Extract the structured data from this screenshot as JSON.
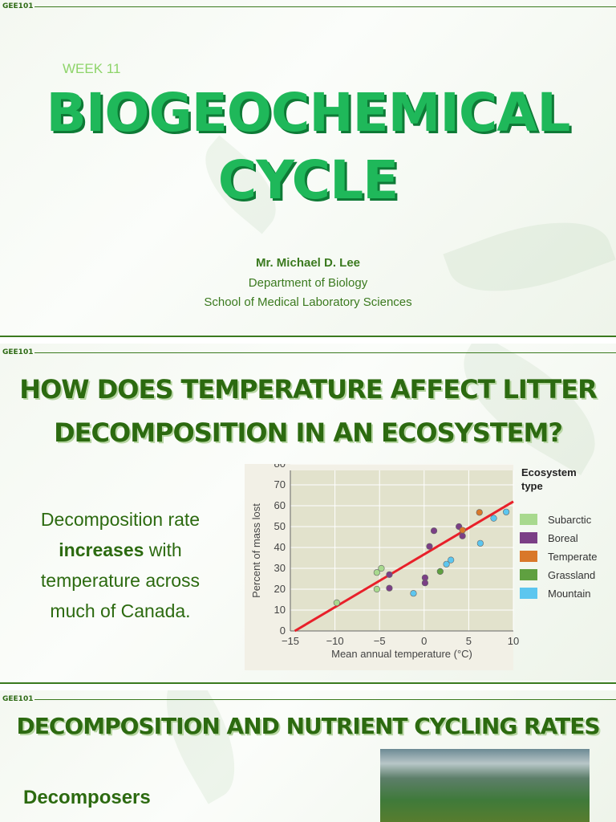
{
  "slide1": {
    "course": "GEE101",
    "week": "WEEK 11",
    "title_line1": "BIOGEOCHEMICAL",
    "title_line2": "CYCLE",
    "author": "Mr. Michael D. Lee",
    "department": "Department of Biology",
    "school": "School of Medical Laboratory Sciences"
  },
  "slide2": {
    "course": "GEE101",
    "title_line1": "HOW DOES TEMPERATURE AFFECT LITTER",
    "title_line2": "DECOMPOSITION IN AN ECOSYSTEM?",
    "text_before": "Decomposition rate",
    "text_bold": "increases",
    "text_after": " with temperature across much of Canada."
  },
  "slide3": {
    "course": "GEE101",
    "title": "DECOMPOSITION AND NUTRIENT CYCLING RATES",
    "subheading": "Decomposers",
    "image_alt": "aerial view of misty forest"
  },
  "colors": {
    "accent": "#2c6a10",
    "title_green": "#1fb85a",
    "regression": "#e8202a"
  },
  "chart_data": {
    "type": "scatter",
    "xlabel": "Mean annual temperature (°C)",
    "ylabel": "Percent of mass lost",
    "xlim": [
      -15,
      10
    ],
    "ylim": [
      0,
      80
    ],
    "xticks": [
      "−15",
      "−10",
      "−5",
      "0",
      "5",
      "10"
    ],
    "yticks": [
      "0",
      "10",
      "20",
      "30",
      "40",
      "50",
      "60",
      "70",
      "80"
    ],
    "legend_title": "Ecosystem type",
    "legend_placement": "right",
    "grid": true,
    "series": [
      {
        "name": "Subarctic",
        "color": "#a8d98e",
        "points": [
          [
            -9.8,
            13.5
          ],
          [
            -5.3,
            28
          ],
          [
            -4.8,
            30
          ],
          [
            -5.3,
            20
          ]
        ]
      },
      {
        "name": "Boreal",
        "color": "#7b3f86",
        "points": [
          [
            -3.9,
            27
          ],
          [
            -3.9,
            20.5
          ],
          [
            0.1,
            25.5
          ],
          [
            0.1,
            23
          ],
          [
            0.6,
            40.5
          ],
          [
            1.1,
            48
          ],
          [
            3.9,
            50
          ],
          [
            4.3,
            45.5
          ]
        ]
      },
      {
        "name": "Temperate",
        "color": "#d9782a",
        "points": [
          [
            4.3,
            48.3
          ],
          [
            6.2,
            56.8
          ]
        ]
      },
      {
        "name": "Grassland",
        "color": "#5fa040",
        "points": [
          [
            1.8,
            28.5
          ]
        ]
      },
      {
        "name": "Mountain",
        "color": "#5cc6ef",
        "points": [
          [
            -1.2,
            18
          ],
          [
            2.5,
            32
          ],
          [
            3.0,
            34
          ],
          [
            6.3,
            42
          ],
          [
            7.8,
            54
          ],
          [
            9.2,
            57
          ]
        ]
      }
    ],
    "trendline": [
      [
        -14.5,
        0
      ],
      [
        10,
        62
      ]
    ]
  }
}
